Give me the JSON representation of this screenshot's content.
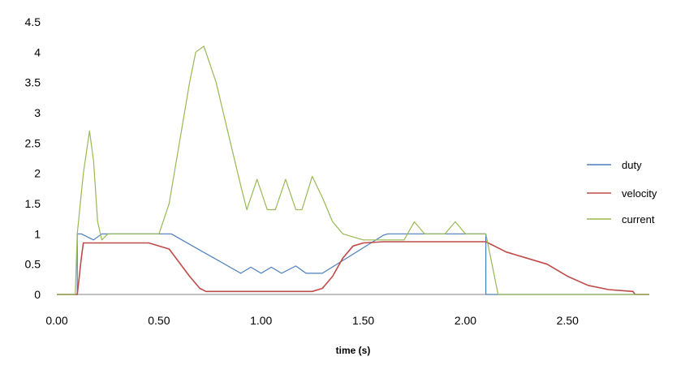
{
  "chart_data": {
    "type": "line",
    "title": "",
    "xlabel": "time (s)",
    "ylabel": "",
    "xlim": [
      0,
      2.9
    ],
    "ylim": [
      0,
      4.5
    ],
    "grid": false,
    "legend_position": "right",
    "x_ticks": [
      "0.00",
      "0.50",
      "1.00",
      "1.50",
      "2.00",
      "2.50"
    ],
    "y_ticks": [
      "0",
      "0.5",
      "1",
      "1.5",
      "2",
      "2.5",
      "3",
      "3.5",
      "4",
      "4.5"
    ],
    "series": [
      {
        "name": "duty",
        "color": "#4a7ebb",
        "points": [
          [
            0,
            0
          ],
          [
            0.1,
            0
          ],
          [
            0.1,
            1
          ],
          [
            0.12,
            1
          ],
          [
            0.18,
            0.9
          ],
          [
            0.22,
            1
          ],
          [
            0.25,
            1
          ],
          [
            0.56,
            1
          ],
          [
            0.9,
            0.35
          ],
          [
            0.95,
            0.45
          ],
          [
            1.0,
            0.35
          ],
          [
            1.05,
            0.45
          ],
          [
            1.1,
            0.35
          ],
          [
            1.17,
            0.47
          ],
          [
            1.22,
            0.35
          ],
          [
            1.3,
            0.35
          ],
          [
            1.6,
            0.98
          ],
          [
            1.62,
            1
          ],
          [
            2.1,
            1
          ],
          [
            2.1,
            0
          ],
          [
            2.9,
            0
          ]
        ]
      },
      {
        "name": "velocity",
        "color": "#be4b48",
        "points": [
          [
            0,
            0
          ],
          [
            0.1,
            0
          ],
          [
            0.12,
            0.6
          ],
          [
            0.13,
            0.85
          ],
          [
            0.3,
            0.85
          ],
          [
            0.45,
            0.85
          ],
          [
            0.55,
            0.75
          ],
          [
            0.65,
            0.3
          ],
          [
            0.7,
            0.1
          ],
          [
            0.73,
            0.05
          ],
          [
            1.25,
            0.05
          ],
          [
            1.3,
            0.1
          ],
          [
            1.35,
            0.3
          ],
          [
            1.4,
            0.6
          ],
          [
            1.45,
            0.8
          ],
          [
            1.5,
            0.85
          ],
          [
            1.6,
            0.87
          ],
          [
            2.1,
            0.87
          ],
          [
            2.2,
            0.7
          ],
          [
            2.3,
            0.6
          ],
          [
            2.4,
            0.5
          ],
          [
            2.5,
            0.3
          ],
          [
            2.6,
            0.15
          ],
          [
            2.7,
            0.08
          ],
          [
            2.82,
            0.05
          ],
          [
            2.83,
            0
          ],
          [
            2.9,
            0
          ]
        ]
      },
      {
        "name": "current",
        "color": "#98b954",
        "points": [
          [
            0,
            0
          ],
          [
            0.09,
            0
          ],
          [
            0.1,
            1.0
          ],
          [
            0.13,
            2.0
          ],
          [
            0.16,
            2.7
          ],
          [
            0.18,
            2.2
          ],
          [
            0.2,
            1.2
          ],
          [
            0.22,
            0.9
          ],
          [
            0.25,
            1.0
          ],
          [
            0.45,
            1.0
          ],
          [
            0.5,
            1.0
          ],
          [
            0.55,
            1.5
          ],
          [
            0.6,
            2.5
          ],
          [
            0.65,
            3.5
          ],
          [
            0.68,
            4.0
          ],
          [
            0.72,
            4.1
          ],
          [
            0.78,
            3.5
          ],
          [
            0.85,
            2.5
          ],
          [
            0.9,
            1.8
          ],
          [
            0.93,
            1.4
          ],
          [
            0.98,
            1.9
          ],
          [
            1.03,
            1.4
          ],
          [
            1.07,
            1.4
          ],
          [
            1.12,
            1.9
          ],
          [
            1.17,
            1.4
          ],
          [
            1.2,
            1.4
          ],
          [
            1.25,
            1.95
          ],
          [
            1.3,
            1.6
          ],
          [
            1.35,
            1.2
          ],
          [
            1.4,
            1.0
          ],
          [
            1.5,
            0.9
          ],
          [
            1.7,
            0.9
          ],
          [
            1.75,
            1.2
          ],
          [
            1.8,
            1.0
          ],
          [
            1.9,
            1.0
          ],
          [
            1.95,
            1.2
          ],
          [
            2.0,
            1.0
          ],
          [
            2.1,
            1.0
          ],
          [
            2.13,
            0.5
          ],
          [
            2.16,
            0
          ],
          [
            2.9,
            0
          ]
        ]
      }
    ]
  }
}
